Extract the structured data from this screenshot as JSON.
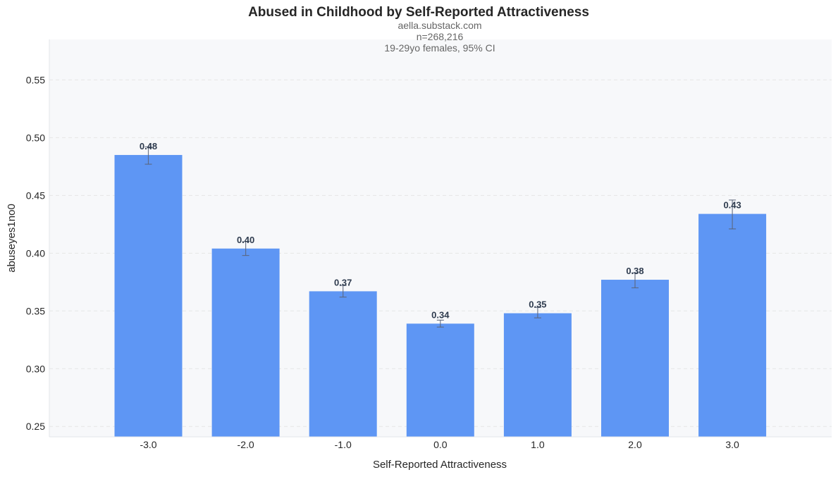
{
  "chart_data": {
    "type": "bar",
    "title": "Abused in Childhood by Self-Reported Attractiveness",
    "subtitle_lines": [
      "aella.substack.com",
      "n=268,216",
      "19-29yo females, 95% CI"
    ],
    "xlabel": "Self-Reported Attractiveness",
    "ylabel": "abuseyes1no0",
    "categories": [
      "-3.0",
      "-2.0",
      "-1.0",
      "0.0",
      "1.0",
      "2.0",
      "3.0"
    ],
    "values": [
      0.485,
      0.404,
      0.367,
      0.339,
      0.348,
      0.377,
      0.434
    ],
    "data_labels": [
      "0.48",
      "0.40",
      "0.37",
      "0.34",
      "0.35",
      "0.38",
      "0.43"
    ],
    "ci_lower": [
      0.477,
      0.398,
      0.362,
      0.336,
      0.344,
      0.37,
      0.421
    ],
    "ci_upper": [
      0.492,
      0.41,
      0.372,
      0.342,
      0.353,
      0.383,
      0.446
    ],
    "ylim": [
      0.241,
      0.585
    ],
    "yticks": [
      0.25,
      0.3,
      0.35,
      0.4,
      0.45,
      0.5,
      0.55
    ],
    "ytick_labels": [
      "0.25",
      "0.30",
      "0.35",
      "0.40",
      "0.45",
      "0.50",
      "0.55"
    ],
    "grid": true,
    "error_bars": true,
    "colors": {
      "bar": "#5e96f4",
      "plot_background": "#f7f8fa",
      "error_bar": "#5a6478",
      "value_label": "#2e3b4e"
    }
  }
}
